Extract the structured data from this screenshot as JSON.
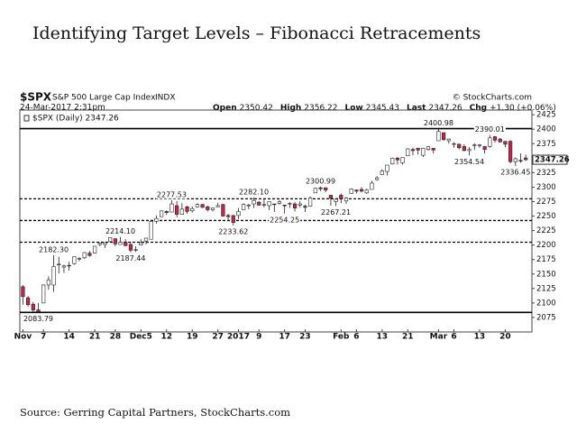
{
  "chart_data": {
    "type": "candlestick",
    "title": "Identifying Target Levels – Fibonacci Retracements",
    "symbol": "$SPX",
    "name": "S&P 500 Large Cap Index",
    "exchange": "INDX",
    "credit": "© StockCharts.com",
    "timestamp": "24-Mar-2017 2:31pm",
    "quote": [
      {
        "label": "Open",
        "text": "2350.42"
      },
      {
        "label": "High",
        "text": "2356.22"
      },
      {
        "label": "Low",
        "text": "2345.43"
      },
      {
        "label": "Last",
        "text": "2347.26"
      },
      {
        "label": "Chg",
        "text": "+1.30 (+0.06%)"
      }
    ],
    "legend": "$SPX (Daily) 2347.26",
    "source": "Source: Gerring Capital Partners, StockCharts.com",
    "up_color": "#ffffff",
    "down_color": "#c8254d",
    "xlim": [
      -0.6,
      99.2
    ],
    "ylim": [
      2050,
      2433
    ],
    "yticks": [
      2075,
      2100,
      2125,
      2150,
      2175,
      2200,
      2225,
      2250,
      2275,
      2300,
      2325,
      2350,
      2375,
      2400,
      2425
    ],
    "xticks": [
      {
        "value": 0,
        "label": "Nov"
      },
      {
        "value": 4,
        "label": "7"
      },
      {
        "value": 9,
        "label": "14"
      },
      {
        "value": 14,
        "label": "21"
      },
      {
        "value": 18,
        "label": "28"
      },
      {
        "value": 23,
        "label": "Dec5"
      },
      {
        "value": 28,
        "label": "12"
      },
      {
        "value": 33,
        "label": "19"
      },
      {
        "value": 38,
        "label": "27"
      },
      {
        "value": 42,
        "label": "2017"
      },
      {
        "value": 46,
        "label": "9"
      },
      {
        "value": 51,
        "label": "17"
      },
      {
        "value": 55,
        "label": "23"
      },
      {
        "value": 62,
        "label": "Feb"
      },
      {
        "value": 65,
        "label": "6"
      },
      {
        "value": 70,
        "label": "13"
      },
      {
        "value": 75,
        "label": "21"
      },
      {
        "value": 81,
        "label": "Mar"
      },
      {
        "value": 84,
        "label": "6"
      },
      {
        "value": 89,
        "label": "13"
      },
      {
        "value": 94,
        "label": "20"
      }
    ],
    "solid_lines": [
      2400.98,
      2083.79
    ],
    "dashed_lines": [
      2279.81,
      2242.39,
      2204.96
    ],
    "last_price": {
      "value": 2347.26,
      "label": "2347.26"
    },
    "annotations": [
      {
        "x": 3,
        "value": 2083.79,
        "label": "2083.79"
      },
      {
        "x": 6,
        "value": 2182.3,
        "label": "2182.30"
      },
      {
        "x": 19,
        "value": 2214.1,
        "label": "2214.10"
      },
      {
        "x": 21,
        "value": 2187.44,
        "label": "2187.44"
      },
      {
        "x": 29,
        "value": 2277.53,
        "label": "2277.53"
      },
      {
        "x": 45,
        "value": 2282.1,
        "label": "2282.10"
      },
      {
        "x": 41,
        "value": 2233.62,
        "label": "2233.62"
      },
      {
        "x": 51,
        "value": 2254.25,
        "label": "2254.25"
      },
      {
        "x": 58,
        "value": 2300.99,
        "label": "2300.99"
      },
      {
        "x": 61,
        "value": 2267.21,
        "label": "2267.21"
      },
      {
        "x": 81,
        "value": 2400.98,
        "label": "2400.98"
      },
      {
        "x": 91,
        "value": 2390.01,
        "label": "2390.01"
      },
      {
        "x": 87,
        "value": 2354.54,
        "label": "2354.54"
      },
      {
        "x": 96,
        "value": 2336.45,
        "label": "2336.45"
      }
    ],
    "candles": [
      [
        2128,
        2131,
        2097,
        2111
      ],
      [
        2109,
        2112,
        2094,
        2097
      ],
      [
        2098,
        2102,
        2085,
        2088
      ],
      [
        2088,
        2100,
        2083.79,
        2085
      ],
      [
        2100,
        2132,
        2100,
        2131
      ],
      [
        2131,
        2146,
        2123,
        2140
      ],
      [
        2131,
        2182.3,
        2119,
        2163
      ],
      [
        2167,
        2180,
        2151,
        2167
      ],
      [
        2162,
        2166,
        2152,
        2164
      ],
      [
        2165,
        2171,
        2156,
        2164
      ],
      [
        2168,
        2180,
        2166,
        2180
      ],
      [
        2177,
        2179,
        2172,
        2177
      ],
      [
        2178,
        2188,
        2176,
        2187
      ],
      [
        2186,
        2190,
        2180,
        2182
      ],
      [
        2186,
        2198,
        2186,
        2198
      ],
      [
        2201,
        2204,
        2198,
        2203
      ],
      [
        2201,
        2205,
        2195,
        2204
      ],
      [
        2206,
        2213,
        2206,
        2213
      ],
      [
        2211,
        2211,
        2198,
        2202
      ],
      [
        2201,
        2214.1,
        2201,
        2205
      ],
      [
        2205,
        2210,
        2198,
        2199
      ],
      [
        2201,
        2205,
        2187.44,
        2191
      ],
      [
        2191,
        2198,
        2188,
        2192
      ],
      [
        2200,
        2210,
        2200,
        2204
      ],
      [
        2207,
        2212,
        2201,
        2212
      ],
      [
        2210,
        2241,
        2210,
        2241
      ],
      [
        2241,
        2251,
        2237,
        2246
      ],
      [
        2249,
        2259,
        2249,
        2259
      ],
      [
        2258,
        2260,
        2252,
        2256
      ],
      [
        2257,
        2277.53,
        2257,
        2271
      ],
      [
        2268,
        2276,
        2248,
        2253
      ],
      [
        2253,
        2272,
        2253,
        2262
      ],
      [
        2266,
        2268,
        2254,
        2258
      ],
      [
        2259,
        2267,
        2256,
        2263
      ],
      [
        2266,
        2272,
        2265,
        2270
      ],
      [
        2270,
        2271,
        2264,
        2265
      ],
      [
        2266,
        2268,
        2258,
        2261
      ],
      [
        2261,
        2264,
        2258,
        2264
      ],
      [
        2266,
        2273,
        2266,
        2268
      ],
      [
        2270,
        2271,
        2249,
        2250
      ],
      [
        2251,
        2254,
        2244,
        2249
      ],
      [
        2251,
        2252,
        2233.62,
        2239
      ],
      [
        2251,
        2264,
        2245,
        2258
      ],
      [
        2261,
        2272,
        2261,
        2270
      ],
      [
        2268,
        2271,
        2262,
        2269
      ],
      [
        2271,
        2282.1,
        2264,
        2277
      ],
      [
        2274,
        2276,
        2268,
        2269
      ],
      [
        2269,
        2279,
        2265,
        2270
      ],
      [
        2268,
        2275,
        2260,
        2275
      ],
      [
        2271,
        2271,
        2257,
        2270
      ],
      [
        2272,
        2278,
        2270,
        2275
      ],
      [
        2269,
        2269,
        2254.25,
        2268
      ],
      [
        2271,
        2274,
        2264,
        2272
      ],
      [
        2271,
        2274,
        2258,
        2264
      ],
      [
        2269,
        2276,
        2265,
        2271
      ],
      [
        2267,
        2270,
        2257,
        2265
      ],
      [
        2267,
        2284,
        2266,
        2281
      ],
      [
        2290,
        2299,
        2290,
        2298
      ],
      [
        2299,
        2300.99,
        2293,
        2297
      ],
      [
        2299,
        2299,
        2291,
        2295
      ],
      [
        2286,
        2286,
        2268,
        2281
      ],
      [
        2275,
        2281,
        2267.21,
        2279
      ],
      [
        2286,
        2289,
        2272,
        2280
      ],
      [
        2276,
        2283,
        2271,
        2281
      ],
      [
        2289,
        2298,
        2289,
        2297
      ],
      [
        2295,
        2296,
        2289,
        2293
      ],
      [
        2296,
        2300,
        2291,
        2293
      ],
      [
        2290,
        2297,
        2288,
        2295
      ],
      [
        2296,
        2311,
        2296,
        2307
      ],
      [
        2313,
        2319,
        2311,
        2316
      ],
      [
        2322,
        2331,
        2321,
        2328
      ],
      [
        2327,
        2338,
        2320,
        2338
      ],
      [
        2340,
        2351,
        2339,
        2350
      ],
      [
        2350,
        2352,
        2339,
        2347
      ],
      [
        2342,
        2351,
        2339,
        2351
      ],
      [
        2354,
        2367,
        2354,
        2366
      ],
      [
        2365,
        2368,
        2355,
        2363
      ],
      [
        2367,
        2368,
        2356,
        2364
      ],
      [
        2355,
        2368,
        2352,
        2367
      ],
      [
        2365,
        2371,
        2363,
        2370
      ],
      [
        2367,
        2367,
        2358,
        2364
      ],
      [
        2380,
        2400.98,
        2380,
        2396
      ],
      [
        2394,
        2394,
        2380,
        2382
      ],
      [
        2380,
        2384,
        2375,
        2383
      ],
      [
        2375,
        2378,
        2368,
        2375
      ],
      [
        2374,
        2375,
        2365,
        2368
      ],
      [
        2370,
        2374,
        2362,
        2363
      ],
      [
        2363,
        2369,
        2354.54,
        2365
      ],
      [
        2372,
        2376,
        2364,
        2373
      ],
      [
        2372,
        2374,
        2368,
        2373
      ],
      [
        2370,
        2371,
        2358,
        2365
      ],
      [
        2370,
        2390.01,
        2368,
        2385
      ],
      [
        2387,
        2388,
        2377,
        2381
      ],
      [
        2383,
        2385,
        2377,
        2378
      ],
      [
        2379,
        2379,
        2369,
        2374
      ],
      [
        2379,
        2381,
        2341,
        2344
      ],
      [
        2344,
        2351,
        2336.45,
        2349
      ],
      [
        2346,
        2358,
        2342,
        2345
      ],
      [
        2350.42,
        2356.22,
        2345.43,
        2347.26
      ]
    ]
  }
}
